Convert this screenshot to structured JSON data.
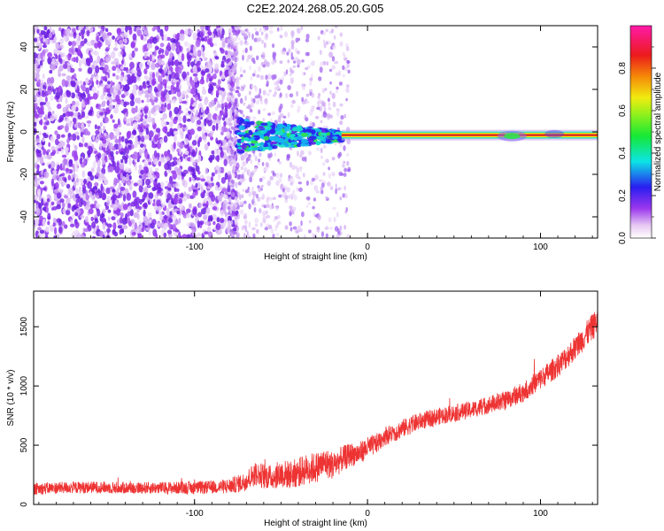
{
  "title": "C2E2.2024.268.05.20.G05",
  "colors": {
    "signal_line": "#dc1e1e",
    "snr_line": "#ee3333",
    "noise_speckle": "#7a2ee6",
    "background": "#ffffff"
  },
  "chart_data": [
    {
      "type": "heatmap",
      "title": "C2E2.2024.268.05.20.G05",
      "xlabel": "Height of straight line (km)",
      "ylabel": "Frequency (Hz)",
      "xlim": [
        -193,
        133
      ],
      "ylim": [
        -50,
        50
      ],
      "x_ticks": [
        -100,
        0,
        100
      ],
      "y_ticks": [
        -40,
        -20,
        0,
        20,
        40
      ],
      "grid": false,
      "colorbar": {
        "label": "Normalized spectral amplitude",
        "range": [
          0,
          1
        ],
        "ticks": [
          0.0,
          0.2,
          0.4,
          0.6,
          0.8
        ],
        "colormap": "white-violet-blue-cyan-green-yellow-orange-red-magenta"
      },
      "features": [
        {
          "name": "noise",
          "x_range": [
            -193,
            -75
          ],
          "freq_range": [
            -50,
            50
          ],
          "amplitude": 0.1
        },
        {
          "name": "transition",
          "x_range": [
            -75,
            -15
          ],
          "freq_center": -2,
          "amplitude": 0.3
        },
        {
          "name": "carrier",
          "x_range": [
            -15,
            133
          ],
          "freq_center": -1.5,
          "amplitude": 1.0
        },
        {
          "name": "spot",
          "x_range": [
            75,
            92
          ],
          "freq_center": -2,
          "amplitude": 0.4
        }
      ]
    },
    {
      "type": "line",
      "xlabel": "Height of straight line (km)",
      "ylabel": "SNR (10 * v/v)",
      "xlim": [
        -193,
        133
      ],
      "ylim": [
        0,
        1800
      ],
      "x_ticks": [
        -100,
        0,
        100
      ],
      "y_ticks": [
        0,
        500,
        1000,
        1500
      ],
      "grid": false,
      "series": [
        {
          "x": [
            -193,
            -180,
            -160,
            -140,
            -120,
            -100,
            -90,
            -80,
            -72,
            -65,
            -60,
            -55,
            -50,
            -45,
            -40,
            -35,
            -30,
            -25,
            -20,
            -15,
            -10,
            -5,
            0,
            5,
            10,
            15,
            20,
            30,
            40,
            50,
            60,
            70,
            80,
            90,
            100,
            110,
            120,
            133
          ],
          "y": [
            130,
            140,
            145,
            140,
            140,
            140,
            145,
            155,
            185,
            260,
            240,
            230,
            260,
            250,
            270,
            300,
            310,
            350,
            330,
            380,
            420,
            430,
            480,
            510,
            580,
            600,
            640,
            700,
            740,
            770,
            800,
            840,
            880,
            950,
            1060,
            1170,
            1320,
            1550
          ],
          "spread": [
            50,
            50,
            50,
            50,
            50,
            55,
            55,
            65,
            80,
            100,
            110,
            100,
            120,
            120,
            125,
            130,
            130,
            125,
            120,
            110,
            100,
            95,
            90,
            85,
            80,
            80,
            78,
            75,
            72,
            72,
            72,
            75,
            80,
            85,
            90,
            95,
            105,
            115
          ]
        }
      ]
    }
  ]
}
